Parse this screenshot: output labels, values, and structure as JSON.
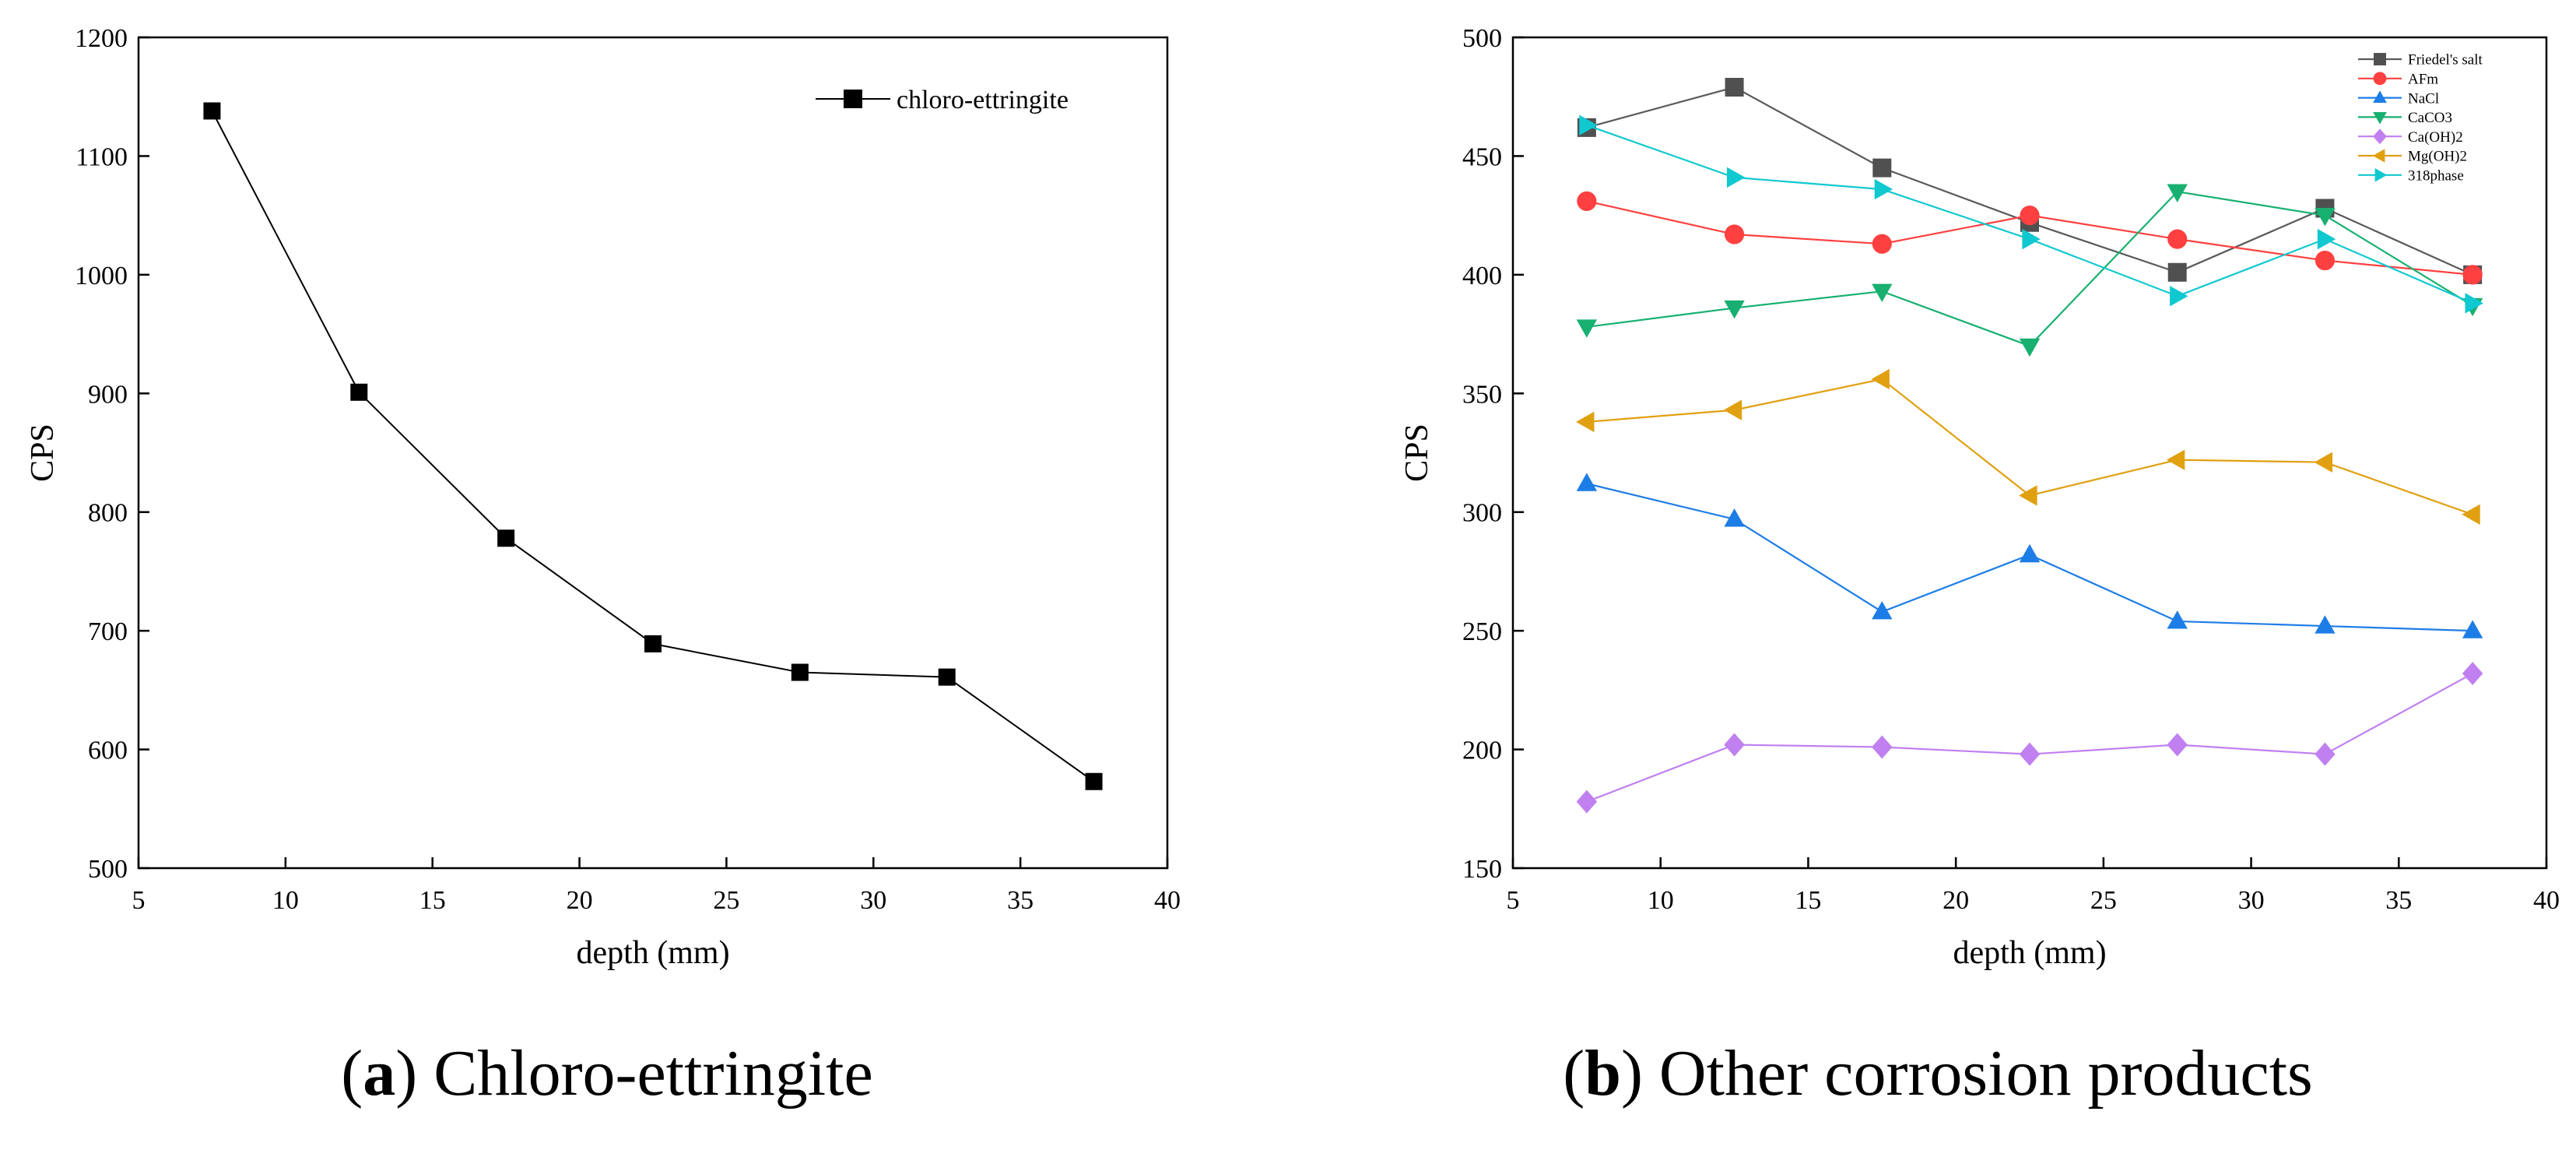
{
  "chart_data": [
    {
      "type": "line",
      "title": "",
      "xlabel": "depth (mm)",
      "ylabel": "CPS",
      "xlim": [
        5,
        40
      ],
      "ylim": [
        500,
        1200
      ],
      "xticks": [
        5,
        10,
        15,
        20,
        25,
        30,
        35,
        40
      ],
      "yticks": [
        500,
        600,
        700,
        800,
        900,
        1000,
        1100,
        1200
      ],
      "x": [
        7.5,
        12.5,
        17.5,
        22.5,
        27.5,
        32.5,
        37.5
      ],
      "legend_position": "top-right",
      "series": [
        {
          "name": "chloro-ettringite",
          "marker": "square",
          "color": "#000000",
          "values": [
            1138,
            901,
            778,
            689,
            665,
            661,
            573
          ]
        }
      ],
      "caption": {
        "letter": "a",
        "text": " Chloro-ettringite"
      }
    },
    {
      "type": "line",
      "title": "",
      "xlabel": "depth (mm)",
      "ylabel": "CPS",
      "xlim": [
        5,
        40
      ],
      "ylim": [
        150,
        500
      ],
      "xticks": [
        5,
        10,
        15,
        20,
        25,
        30,
        35,
        40
      ],
      "yticks": [
        150,
        200,
        250,
        300,
        350,
        400,
        450,
        500
      ],
      "x": [
        7.5,
        12.5,
        17.5,
        22.5,
        27.5,
        32.5,
        37.5
      ],
      "legend_position": "top-right",
      "series": [
        {
          "name": "Friedel's salt",
          "marker": "square",
          "color": "#505050",
          "line_color": "#5a5a5a",
          "values": [
            462,
            479,
            445,
            422,
            401,
            428,
            400
          ]
        },
        {
          "name": "AFm",
          "marker": "circle",
          "color": "#ff4040",
          "line_color": "#ff4040",
          "values": [
            431,
            417,
            413,
            425,
            415,
            406,
            400
          ]
        },
        {
          "name": "NaCl",
          "marker": "triangle-up",
          "color": "#1d7de6",
          "line_color": "#1d7de6",
          "values": [
            312,
            297,
            258,
            282,
            254,
            252,
            250
          ]
        },
        {
          "name": "CaCO3",
          "marker": "triangle-down",
          "color": "#17b070",
          "line_color": "#17b070",
          "values": [
            378,
            386,
            393,
            370,
            435,
            425,
            387
          ]
        },
        {
          "name": "Ca(OH)2",
          "marker": "diamond",
          "color": "#c080f0",
          "line_color": "#c080f0",
          "values": [
            178,
            202,
            201,
            198,
            202,
            198,
            232
          ]
        },
        {
          "name": "Mg(OH)2",
          "marker": "triangle-left",
          "color": "#e0a010",
          "line_color": "#e0a010",
          "values": [
            338,
            343,
            356,
            307,
            322,
            321,
            299
          ]
        },
        {
          "name": "318phase",
          "marker": "triangle-right",
          "color": "#10c8d0",
          "line_color": "#10c8d0",
          "values": [
            463,
            441,
            436,
            415,
            391,
            415,
            388
          ]
        }
      ],
      "caption": {
        "letter": "b",
        "text": " Other corrosion products"
      }
    }
  ]
}
